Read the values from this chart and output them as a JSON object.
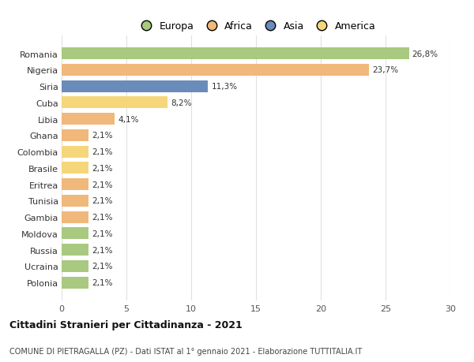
{
  "countries": [
    "Romania",
    "Nigeria",
    "Siria",
    "Cuba",
    "Libia",
    "Ghana",
    "Colombia",
    "Brasile",
    "Eritrea",
    "Tunisia",
    "Gambia",
    "Moldova",
    "Russia",
    "Ucraina",
    "Polonia"
  ],
  "values": [
    26.8,
    23.7,
    11.3,
    8.2,
    4.1,
    2.1,
    2.1,
    2.1,
    2.1,
    2.1,
    2.1,
    2.1,
    2.1,
    2.1,
    2.1
  ],
  "labels": [
    "26,8%",
    "23,7%",
    "11,3%",
    "8,2%",
    "4,1%",
    "2,1%",
    "2,1%",
    "2,1%",
    "2,1%",
    "2,1%",
    "2,1%",
    "2,1%",
    "2,1%",
    "2,1%",
    "2,1%"
  ],
  "colors": [
    "#a8c97f",
    "#f0b87a",
    "#6b8cba",
    "#f5d67a",
    "#f0b87a",
    "#f0b87a",
    "#f5d67a",
    "#f5d67a",
    "#f0b87a",
    "#f0b87a",
    "#f0b87a",
    "#a8c97f",
    "#a8c97f",
    "#a8c97f",
    "#a8c97f"
  ],
  "legend_labels": [
    "Europa",
    "Africa",
    "Asia",
    "America"
  ],
  "legend_colors": [
    "#a8c97f",
    "#f0b87a",
    "#6b8cba",
    "#f5d67a"
  ],
  "title": "Cittadini Stranieri per Cittadinanza - 2021",
  "subtitle": "COMUNE DI PIETRAGALLA (PZ) - Dati ISTAT al 1° gennaio 2021 - Elaborazione TUTTITALIA.IT",
  "xlim": [
    0,
    30
  ],
  "xticks": [
    0,
    5,
    10,
    15,
    20,
    25,
    30
  ],
  "background_color": "#ffffff",
  "grid_color": "#e0e0e0",
  "bar_height": 0.72,
  "label_fontsize": 7.5,
  "tick_fontsize": 8.0
}
